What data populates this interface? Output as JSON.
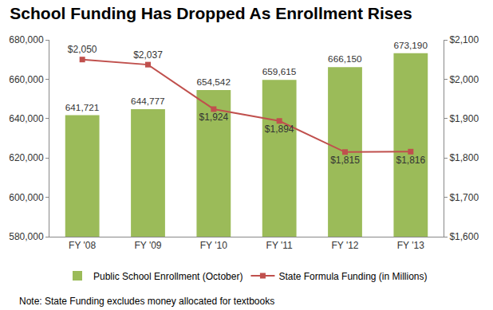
{
  "chart_data": {
    "type": "bar",
    "title": "School Funding Has Dropped As Enrollment Rises",
    "categories": [
      "FY '08",
      "FY '09",
      "FY '10",
      "FY '11",
      "FY '12",
      "FY '13"
    ],
    "series": [
      {
        "name": "Public School Enrollment (October)",
        "type": "bar",
        "color": "#9bbb59",
        "values": [
          641721,
          644777,
          654542,
          659615,
          666150,
          673190
        ],
        "value_labels": [
          "641,721",
          "644,777",
          "654,542",
          "659,615",
          "666,150",
          "673,190"
        ]
      },
      {
        "name": "State Formula Funding (in Millions)",
        "type": "line",
        "axis": "y2",
        "color": "#c0504d",
        "marker": "square",
        "values": [
          2050,
          2037,
          1924,
          1894,
          1815,
          1816
        ],
        "value_labels": [
          "$2,050",
          "$2,037",
          "$1,924",
          "$1,894",
          "$1,815",
          "$1,816"
        ]
      }
    ],
    "ylim": [
      580000,
      680000
    ],
    "yticks": [
      {
        "value": 580000,
        "label": "580,000"
      },
      {
        "value": 600000,
        "label": "600,000"
      },
      {
        "value": 620000,
        "label": "620,000"
      },
      {
        "value": 640000,
        "label": "640,000"
      },
      {
        "value": 660000,
        "label": "660,000"
      },
      {
        "value": 680000,
        "label": "680,000"
      }
    ],
    "y2lim": [
      1600,
      2100
    ],
    "y2ticks": [
      {
        "value": 1600,
        "label": "$1,600"
      },
      {
        "value": 1700,
        "label": "$1,700"
      },
      {
        "value": 1800,
        "label": "$1,800"
      },
      {
        "value": 1900,
        "label": "$1,900"
      },
      {
        "value": 2000,
        "label": "$2,000"
      },
      {
        "value": 2100,
        "label": "$2,100"
      }
    ],
    "data_labels": true,
    "legend": "bottom",
    "grid": false,
    "note": "Note: State Funding excludes money allocated for textbooks"
  }
}
